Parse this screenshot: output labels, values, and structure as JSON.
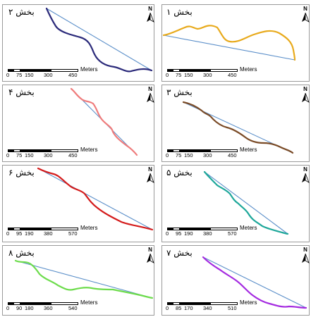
{
  "figure": {
    "unit_label": "Meters",
    "north_label": "N",
    "straight_line_color": "#5b8fc9",
    "panels": [
      {
        "id": "p2",
        "title": "بخش ۲",
        "route_color": "#2b2a7a",
        "scale_ticks": [
          "0",
          "75",
          "150",
          "300",
          "450"
        ]
      },
      {
        "id": "p1",
        "title": "بخش ۱",
        "route_color": "#e8aa1c",
        "scale_ticks": [
          "0",
          "75",
          "150",
          "300",
          "450"
        ]
      },
      {
        "id": "p4",
        "title": "بخش ۴",
        "route_color": "#ef7b7b",
        "scale_ticks": [
          "0",
          "75",
          "150",
          "300",
          "450"
        ]
      },
      {
        "id": "p3",
        "title": "بخش ۳",
        "route_color": "#7a4b27",
        "scale_ticks": [
          "0",
          "75",
          "150",
          "300",
          "450"
        ]
      },
      {
        "id": "p6",
        "title": "بخش ۶",
        "route_color": "#d41b1b",
        "scale_ticks": [
          "0",
          "95",
          "190",
          "380",
          "570"
        ]
      },
      {
        "id": "p5",
        "title": "بخش ۵",
        "route_color": "#1ea79a",
        "scale_ticks": [
          "0",
          "95",
          "190",
          "380",
          "570"
        ]
      },
      {
        "id": "p8",
        "title": "بخش ۸",
        "route_color": "#6ddc4c",
        "scale_ticks": [
          "0",
          "90",
          "180",
          "360",
          "540"
        ]
      },
      {
        "id": "p7",
        "title": "بخش ۷",
        "route_color": "#a42be0",
        "scale_ticks": [
          "0",
          "85",
          "170",
          "340",
          "510"
        ]
      }
    ]
  }
}
